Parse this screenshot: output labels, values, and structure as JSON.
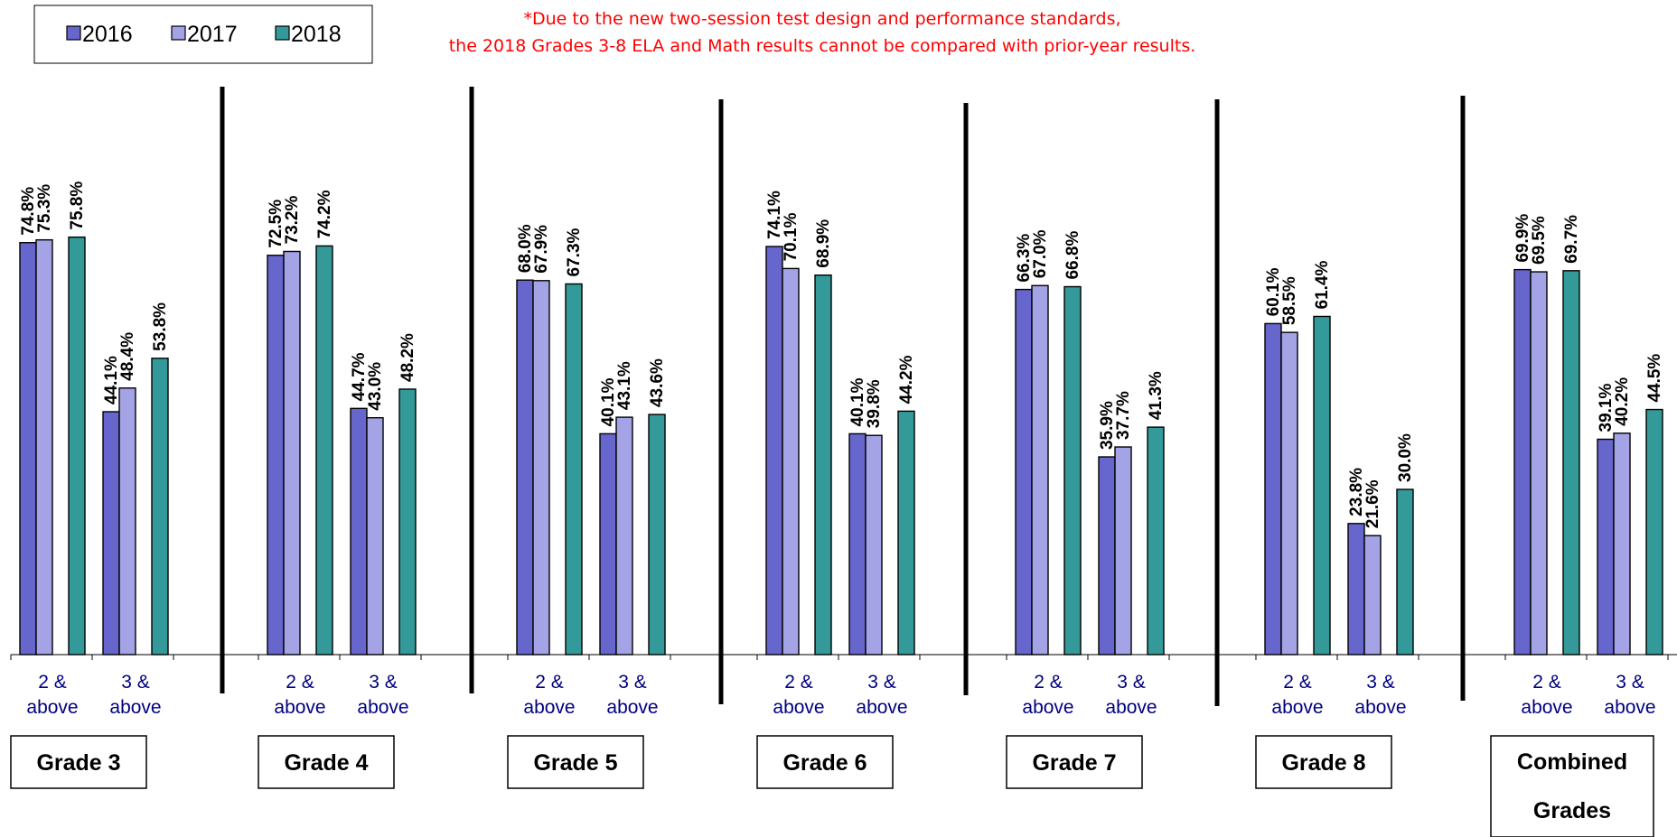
{
  "note": {
    "line1": "*Due to the new two-session test design and performance standards,",
    "line2": "the 2018 Grades 3-8 ELA and Math results cannot be compared with prior-year results."
  },
  "colors": {
    "2016": "#6666cc",
    "2017": "#a3a3e6",
    "2018": "#339999",
    "category_text": "#000080",
    "note": "#ff0000"
  },
  "chart_data": {
    "type": "bar",
    "series": [
      {
        "name": "2016"
      },
      {
        "name": "2017"
      },
      {
        "name": "2018"
      }
    ],
    "categories": [
      "2 & above",
      "3 & above"
    ],
    "ylim": [
      0,
      80
    ],
    "groups": [
      {
        "label": "Grade 3",
        "values": {
          "2 & above": [
            74.8,
            75.3,
            75.8
          ],
          "3 & above": [
            44.1,
            48.4,
            53.8
          ]
        }
      },
      {
        "label": "Grade 4",
        "values": {
          "2 & above": [
            72.5,
            73.2,
            74.2
          ],
          "3 & above": [
            44.7,
            43.0,
            48.2
          ]
        }
      },
      {
        "label": "Grade 5",
        "values": {
          "2 & above": [
            68.0,
            67.9,
            67.3
          ],
          "3 & above": [
            40.1,
            43.1,
            43.6
          ]
        }
      },
      {
        "label": "Grade 6",
        "values": {
          "2 & above": [
            74.1,
            70.1,
            68.9
          ],
          "3 & above": [
            40.1,
            39.8,
            44.2
          ]
        }
      },
      {
        "label": "Grade 7",
        "values": {
          "2 & above": [
            66.3,
            67.0,
            66.8
          ],
          "3 & above": [
            35.9,
            37.7,
            41.3
          ]
        }
      },
      {
        "label": "Grade 8",
        "values": {
          "2 & above": [
            60.1,
            58.5,
            61.4
          ],
          "3 & above": [
            23.8,
            21.6,
            30.0
          ]
        }
      },
      {
        "label": "Combined Grades",
        "label_lines": [
          "Combined",
          "Grades"
        ],
        "values": {
          "2 & above": [
            69.9,
            69.5,
            69.7
          ],
          "3 & above": [
            39.1,
            40.2,
            44.5
          ]
        }
      }
    ]
  }
}
